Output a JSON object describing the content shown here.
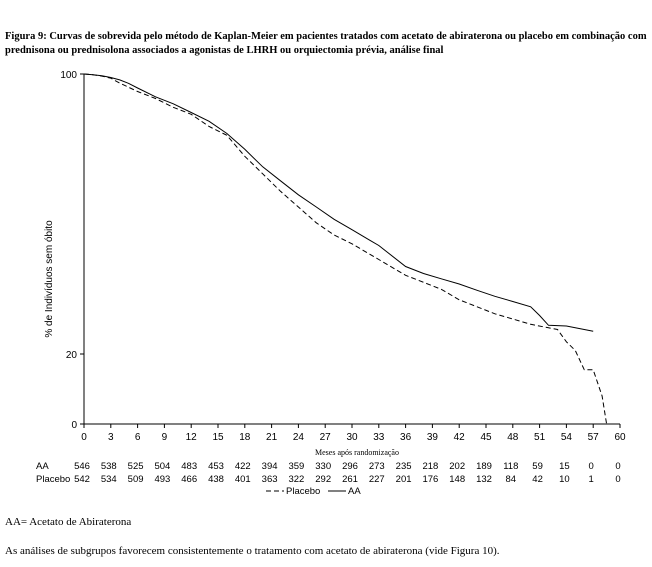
{
  "figure": {
    "title": "Figura 9: Curvas de sobrevida pelo método de Kaplan-Meier em pacientes tratados com acetato de abiraterona ou placebo em combinação com prednisona ou prednisolona associados a agonistas de LHRH ou orquiectomia prévia, análise final",
    "abbreviation": "AA= Acetato de Abiraterona",
    "note": "As análises de subgrupos favorecem consistentemente o tratamento com acetato de abiraterona (vide Figura 10)."
  },
  "chart_data": {
    "type": "line",
    "title": "",
    "xlabel": "Meses após randomização",
    "ylabel": "% de Indivíduos sem óbito",
    "xlim": [
      0,
      60
    ],
    "ylim": [
      0,
      100
    ],
    "x_ticks": [
      0,
      3,
      6,
      9,
      12,
      15,
      18,
      21,
      24,
      27,
      30,
      33,
      36,
      39,
      42,
      45,
      48,
      51,
      54,
      57,
      60
    ],
    "x_tick_labels": [
      "0",
      "3",
      "6",
      "9",
      "12",
      "15",
      "18",
      "21",
      "24",
      "27",
      "30",
      "33",
      "36",
      "39",
      "42",
      "45",
      "48",
      "51",
      "54",
      "57",
      "60"
    ],
    "y_ticks": [
      0,
      20,
      100
    ],
    "y_tick_labels": [
      "0",
      "20",
      "100"
    ],
    "legend": {
      "position": "bottom",
      "entries": [
        "Placebo",
        "AA"
      ]
    },
    "series": [
      {
        "name": "AA",
        "style": "solid",
        "x": [
          0,
          1,
          2,
          3,
          4,
          5,
          6,
          8,
          10,
          12,
          14,
          16,
          18,
          20,
          22,
          24,
          26,
          28,
          30,
          32,
          33,
          34,
          36,
          38,
          40,
          42,
          44,
          46,
          48,
          50,
          51,
          52,
          54,
          57
        ],
        "y": [
          100,
          99.8,
          99.5,
          99,
          98.3,
          97.3,
          96,
          93.5,
          91.5,
          89,
          86.5,
          83,
          78.5,
          73.5,
          69.5,
          65.5,
          62,
          58.5,
          55.5,
          52.5,
          51,
          49,
          45,
          43,
          41.5,
          40,
          38.2,
          36.5,
          35,
          33.5,
          31,
          28.2,
          28,
          26.5
        ]
      },
      {
        "name": "Placebo",
        "style": "dashed",
        "x": [
          0,
          1,
          2,
          3,
          4,
          5,
          6,
          8,
          10,
          12,
          14,
          16,
          18,
          20,
          22,
          24,
          26,
          28,
          30,
          32,
          33,
          34,
          36,
          38,
          40,
          42,
          44,
          46,
          48,
          50,
          52,
          53,
          54,
          55,
          56,
          57,
          58,
          58.5
        ],
        "y": [
          100,
          99.8,
          99.4,
          98.8,
          97.4,
          96.2,
          95,
          93,
          90.5,
          88.5,
          85,
          82.5,
          76.5,
          71.5,
          66.5,
          62,
          57.5,
          54,
          51.5,
          48.5,
          47,
          45.5,
          42.5,
          40.5,
          38.5,
          35.5,
          33.5,
          31.5,
          30,
          28.5,
          27.5,
          27,
          23.5,
          21,
          15.5,
          15.5,
          8,
          0
        ]
      }
    ],
    "risk_table": {
      "rows": [
        {
          "label": "AA",
          "values": [
            "546",
            "538",
            "525",
            "504",
            "483",
            "453",
            "422",
            "394",
            "359",
            "330",
            "296",
            "273",
            "235",
            "218",
            "202",
            "189",
            "118",
            "59",
            "15",
            "0",
            "0"
          ]
        },
        {
          "label": "Placebo",
          "values": [
            "542",
            "534",
            "509",
            "493",
            "466",
            "438",
            "401",
            "363",
            "322",
            "292",
            "261",
            "227",
            "201",
            "176",
            "148",
            "132",
            "84",
            "42",
            "10",
            "1",
            "0"
          ]
        }
      ]
    }
  }
}
